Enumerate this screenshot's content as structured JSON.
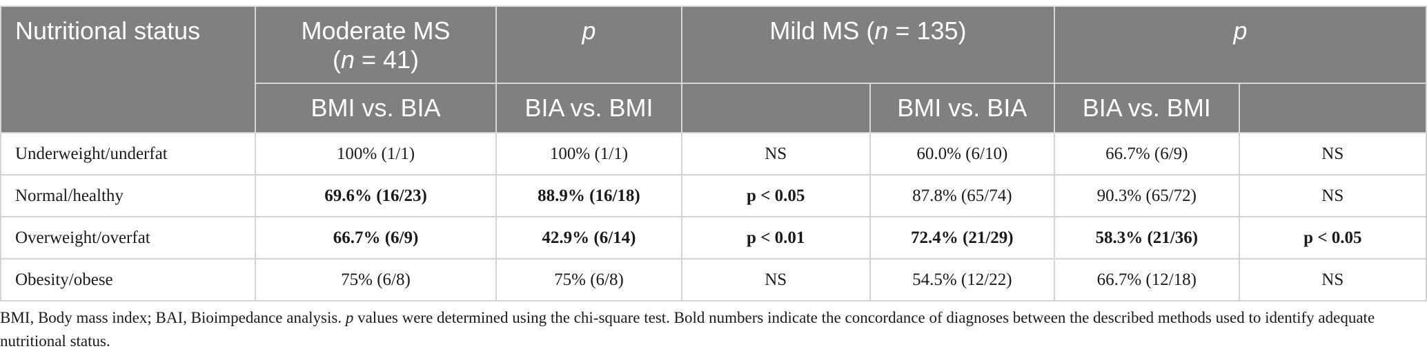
{
  "header": {
    "row1": {
      "nutritional_status": "Nutritional status",
      "moderate_ms_line1": "Moderate MS",
      "moderate_ms_paren_open": "(",
      "moderate_ms_n_var": "n",
      "moderate_ms_n_rest": " = 41)",
      "p1": "p",
      "mild_ms_prefix": "Mild MS (",
      "mild_ms_n_var": "n",
      "mild_ms_n_rest": " = 135)",
      "p2": "p"
    },
    "row2": {
      "col1": "BMI vs. BIA",
      "col2": "BIA vs. BMI",
      "col3": "",
      "col4": "BMI vs. BIA",
      "col5": "BIA vs. BMI",
      "col6": ""
    }
  },
  "rows": [
    {
      "label": "Underweight/underfat",
      "cells": [
        "100% (1/1)",
        "100% (1/1)",
        "NS",
        "60.0% (6/10)",
        "66.7% (6/9)",
        "NS"
      ],
      "bold": [
        false,
        false,
        false,
        false,
        false,
        false
      ]
    },
    {
      "label": "Normal/healthy",
      "cells": [
        "69.6% (16/23)",
        "88.9% (16/18)",
        "p < 0.05",
        "87.8% (65/74)",
        "90.3% (65/72)",
        "NS"
      ],
      "bold": [
        true,
        true,
        true,
        false,
        false,
        false
      ]
    },
    {
      "label": "Overweight/overfat",
      "cells": [
        "66.7% (6/9)",
        "42.9% (6/14)",
        "p < 0.01",
        "72.4% (21/29)",
        "58.3% (21/36)",
        "p < 0.05"
      ],
      "bold": [
        true,
        true,
        true,
        true,
        true,
        true
      ]
    },
    {
      "label": "Obesity/obese",
      "cells": [
        "75% (6/8)",
        "75% (6/8)",
        "NS",
        "54.5% (12/22)",
        "66.7% (12/18)",
        "NS"
      ],
      "bold": [
        false,
        false,
        false,
        false,
        false,
        false
      ]
    }
  ],
  "footnote": {
    "part1": "BMI, Body mass index; BAI, Bioimpedance analysis. ",
    "p_var": "p",
    "part2": " values were determined using the chi-square test. Bold numbers indicate the concordance of diagnoses between the described methods used to identify adequate nutritional status."
  }
}
